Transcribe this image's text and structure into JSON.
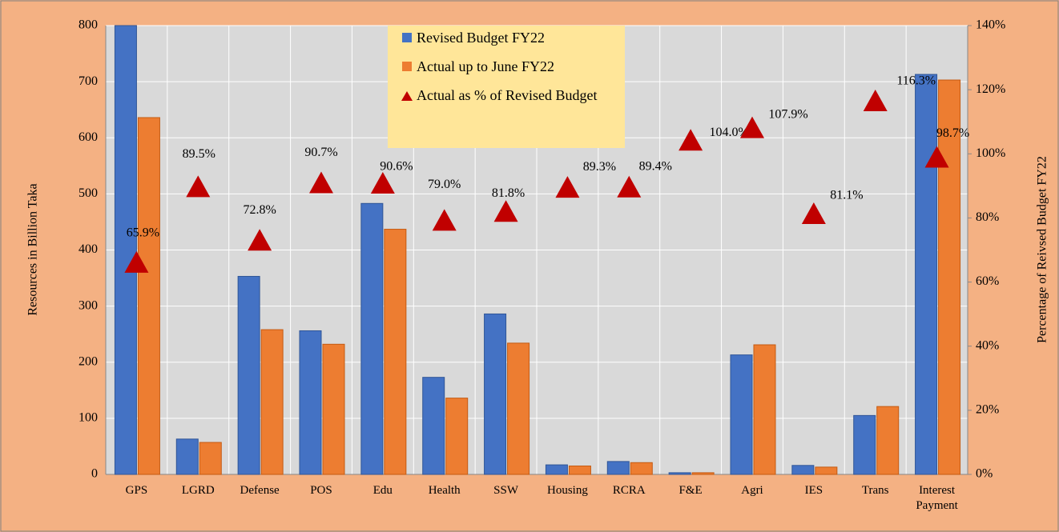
{
  "chart_data": {
    "type": "bar-line",
    "categories": [
      "GPS",
      "LGRD",
      "Defense",
      "POS",
      "Edu",
      "Health",
      "SSW",
      "Housing",
      "RCRA",
      "F&E",
      "Agri",
      "IES",
      "Trans",
      "Interest Payment"
    ],
    "series": [
      {
        "name": "Revised Budget FY22",
        "type": "bar",
        "color": "#4472c4",
        "values": [
          800,
          63,
          353,
          256,
          483,
          173,
          286,
          17,
          23,
          3,
          213,
          16,
          105,
          713
        ]
      },
      {
        "name": "Actual up to June FY22",
        "type": "bar",
        "color": "#ed7d31",
        "values": [
          636,
          57,
          258,
          232,
          437,
          136,
          234,
          15,
          21,
          3,
          231,
          13,
          121,
          703
        ]
      },
      {
        "name": "Actual as % of Revised Budget",
        "type": "scatter",
        "marker": "triangle",
        "axis": "y2",
        "color": "#c00000",
        "values": [
          65.9,
          89.5,
          72.8,
          90.7,
          90.6,
          79.0,
          81.8,
          89.3,
          89.4,
          104.0,
          107.9,
          81.1,
          116.3,
          98.7
        ],
        "value_labels": [
          "65.9%",
          "89.5%",
          "72.8%",
          "90.7%",
          "90.6%",
          "79.0%",
          "81.8%",
          "89.3%",
          "89.4%",
          "104.0%",
          "107.9%",
          "81.1%",
          "116.3%",
          "98.7%"
        ]
      }
    ],
    "ylabel": "Resources in Billion Taka",
    "y2label": "Percentage of Reivsed Budget FY22",
    "ylim": [
      0,
      800
    ],
    "yticks": [
      0,
      100,
      200,
      300,
      400,
      500,
      600,
      700,
      800
    ],
    "y2lim": [
      0,
      140
    ],
    "y2ticks": [
      {
        "value": 0,
        "label": "0%"
      },
      {
        "value": 20,
        "label": "20%"
      },
      {
        "value": 40,
        "label": "40%"
      },
      {
        "value": 60,
        "label": "60%"
      },
      {
        "value": 80,
        "label": "80%"
      },
      {
        "value": 100,
        "label": "100%"
      },
      {
        "value": 120,
        "label": "120%"
      },
      {
        "value": 140,
        "label": "140%"
      }
    ],
    "grid": true
  }
}
